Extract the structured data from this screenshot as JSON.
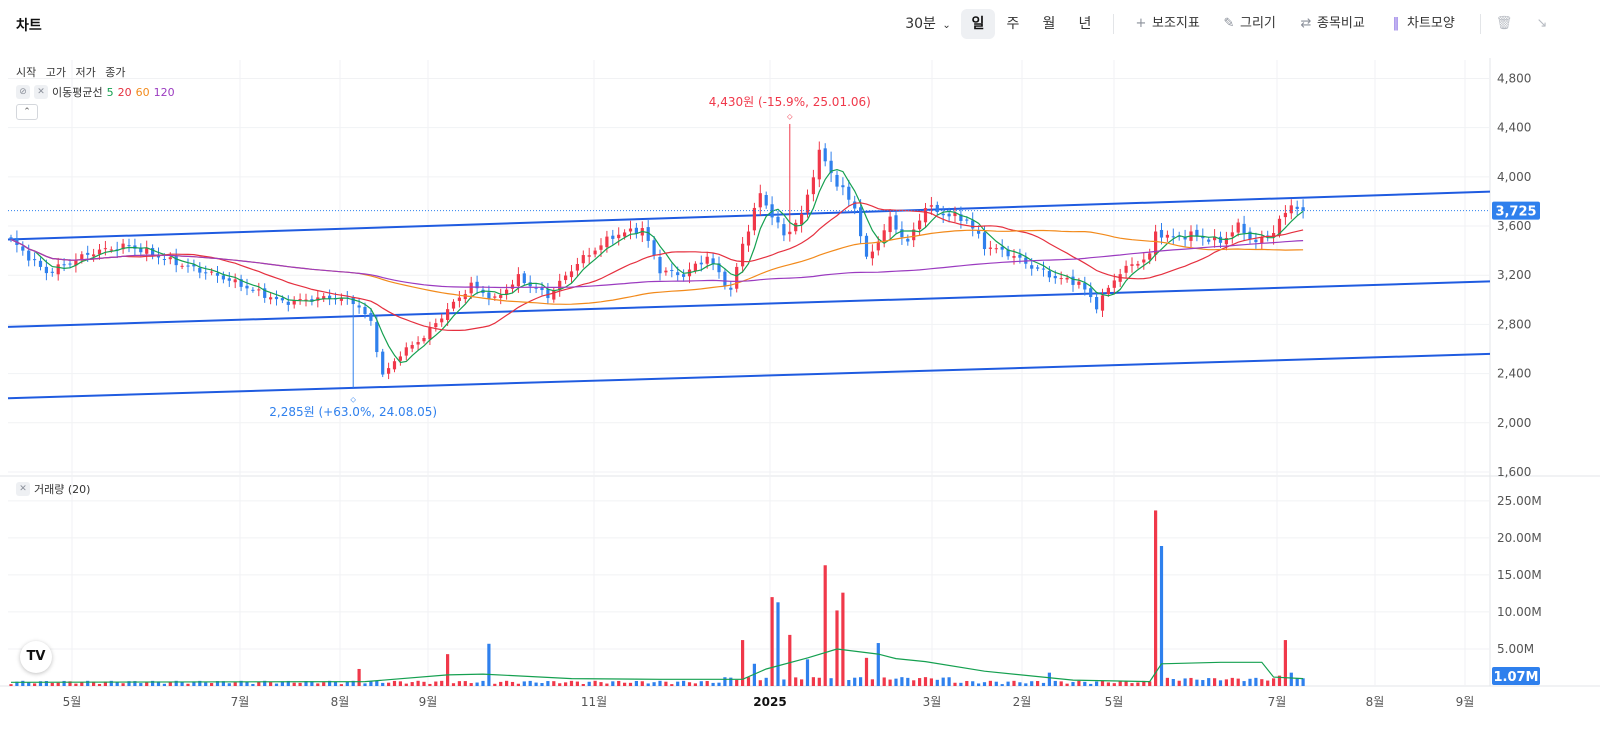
{
  "header": {
    "title": "차트",
    "interval": "30분",
    "periods": [
      "일",
      "주",
      "월",
      "년"
    ],
    "active_period": "일",
    "tools": [
      "보조지표",
      "그리기",
      "종목비교",
      "차트모양"
    ]
  },
  "legend": {
    "ohlc": [
      "시작",
      "고가",
      "저가",
      "종가"
    ],
    "ma_label": "이동평균선",
    "ma_periods": [
      "5",
      "20",
      "60",
      "120"
    ],
    "volume_label": "거래량 (20)"
  },
  "colors": {
    "up": "#f0384a",
    "down": "#2f80ed",
    "ma5": "#15a050",
    "ma20": "#e5303f",
    "ma60": "#f28a1b",
    "ma120": "#9b3bc0",
    "channel": "#1f5be0"
  },
  "chart_data": [
    {
      "type": "candlestick",
      "x_ticks": [
        "5월",
        "7월",
        "8월",
        "9월",
        "11월",
        "2025",
        "3월",
        "2월",
        "5월",
        "7월",
        "8월",
        "9월"
      ],
      "y_ticks": [
        "4,800",
        "4,400",
        "4,000",
        "3,600",
        "3,200",
        "2,800",
        "2,400",
        "2,000",
        "1,600"
      ],
      "ylim": [
        1600,
        4950
      ],
      "last_price": 3725,
      "last_price_label": "3,725",
      "annotations": [
        {
          "text": "4,430원 (-15.9%, 25.01.06)",
          "price": 4430,
          "kind": "high"
        },
        {
          "text": "2,285원 (+63.0%, 24.08.05)",
          "price": 2285,
          "kind": "low"
        }
      ],
      "trend_lines": [
        {
          "from": 3490,
          "to": 3880
        },
        {
          "from": 2780,
          "to": 3150
        },
        {
          "from": 2200,
          "to": 2560
        }
      ],
      "waypoints": [
        [
          0,
          3480
        ],
        [
          6,
          3220
        ],
        [
          14,
          3390
        ],
        [
          20,
          3440
        ],
        [
          28,
          3300
        ],
        [
          36,
          3180
        ],
        [
          46,
          2980
        ],
        [
          54,
          3020
        ],
        [
          58,
          2990
        ],
        [
          61,
          2820
        ],
        [
          63,
          2380
        ],
        [
          66,
          2560
        ],
        [
          70,
          2700
        ],
        [
          74,
          2920
        ],
        [
          78,
          3120
        ],
        [
          82,
          3000
        ],
        [
          86,
          3180
        ],
        [
          91,
          3030
        ],
        [
          96,
          3300
        ],
        [
          102,
          3520
        ],
        [
          107,
          3580
        ],
        [
          110,
          3240
        ],
        [
          114,
          3200
        ],
        [
          118,
          3350
        ],
        [
          122,
          3070
        ],
        [
          124,
          3450
        ],
        [
          127,
          3860
        ],
        [
          131,
          3520
        ],
        [
          134,
          3680
        ],
        [
          137,
          4200
        ],
        [
          140,
          3950
        ],
        [
          143,
          3750
        ],
        [
          145,
          3320
        ],
        [
          149,
          3650
        ],
        [
          152,
          3460
        ],
        [
          155,
          3760
        ],
        [
          158,
          3700
        ],
        [
          162,
          3650
        ],
        [
          165,
          3440
        ],
        [
          169,
          3380
        ],
        [
          173,
          3270
        ],
        [
          177,
          3180
        ],
        [
          181,
          3140
        ],
        [
          184,
          2950
        ],
        [
          188,
          3230
        ],
        [
          193,
          3360
        ],
        [
          194,
          3550
        ],
        [
          197,
          3500
        ],
        [
          200,
          3530
        ],
        [
          205,
          3470
        ],
        [
          208,
          3600
        ],
        [
          211,
          3460
        ],
        [
          214,
          3560
        ],
        [
          217,
          3780
        ],
        [
          219,
          3725
        ]
      ],
      "total_bars": 220
    },
    {
      "type": "bar",
      "title": "거래량 (20)",
      "y_ticks": [
        "25.00M",
        "20.00M",
        "15.00M",
        "10.00M",
        "5.00M"
      ],
      "ylim": [
        0,
        27
      ],
      "last_volume_label": "1.07M",
      "spikes": [
        {
          "bar": 59,
          "value": 2.3,
          "up": true
        },
        {
          "bar": 74,
          "value": 4.3,
          "up": true
        },
        {
          "bar": 81,
          "value": 5.7,
          "up": false
        },
        {
          "bar": 124,
          "value": 6.2,
          "up": true
        },
        {
          "bar": 126,
          "value": 3.0,
          "up": false
        },
        {
          "bar": 129,
          "value": 12.0,
          "up": true
        },
        {
          "bar": 130,
          "value": 11.3,
          "up": false
        },
        {
          "bar": 132,
          "value": 6.9,
          "up": true
        },
        {
          "bar": 135,
          "value": 3.6,
          "up": false
        },
        {
          "bar": 138,
          "value": 16.3,
          "up": true
        },
        {
          "bar": 140,
          "value": 10.2,
          "up": true
        },
        {
          "bar": 141,
          "value": 12.6,
          "up": true
        },
        {
          "bar": 145,
          "value": 3.8,
          "up": true
        },
        {
          "bar": 147,
          "value": 5.8,
          "up": false
        },
        {
          "bar": 176,
          "value": 1.8,
          "up": false
        },
        {
          "bar": 194,
          "value": 23.7,
          "up": true
        },
        {
          "bar": 195,
          "value": 18.9,
          "up": false
        },
        {
          "bar": 215,
          "value": 1.4,
          "up": true
        },
        {
          "bar": 216,
          "value": 6.2,
          "up": true
        },
        {
          "bar": 217,
          "value": 1.8,
          "up": false
        }
      ],
      "ma20_points": [
        [
          0,
          0.5
        ],
        [
          60,
          0.6
        ],
        [
          74,
          1.5
        ],
        [
          80,
          1.6
        ],
        [
          95,
          1.0
        ],
        [
          110,
          0.9
        ],
        [
          124,
          0.9
        ],
        [
          128,
          2.3
        ],
        [
          135,
          3.8
        ],
        [
          140,
          5.0
        ],
        [
          147,
          4.3
        ],
        [
          150,
          3.7
        ],
        [
          155,
          3.3
        ],
        [
          165,
          2.0
        ],
        [
          180,
          0.8
        ],
        [
          193,
          0.6
        ],
        [
          195,
          3.0
        ],
        [
          205,
          3.2
        ],
        [
          212,
          3.2
        ],
        [
          214,
          1.2
        ],
        [
          219,
          1.0
        ]
      ]
    }
  ]
}
